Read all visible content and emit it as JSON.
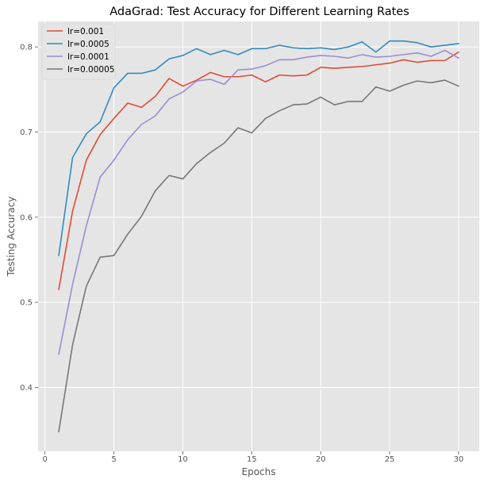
{
  "chart_data": {
    "type": "line",
    "title": "AdaGrad: Test Accuracy for Different Learning Rates",
    "xlabel": "Epochs",
    "ylabel": "Testing Accuracy",
    "xlim": [
      -0.5,
      31.5
    ],
    "ylim": [
      0.325,
      0.83
    ],
    "xticks": [
      0,
      5,
      10,
      15,
      20,
      25,
      30
    ],
    "yticks": [
      0.4,
      0.5,
      0.6,
      0.7,
      0.8
    ],
    "xtick_labels": [
      "0",
      "5",
      "10",
      "15",
      "20",
      "25",
      "30"
    ],
    "ytick_labels": [
      "0.4",
      "0.5",
      "0.6",
      "0.7",
      "0.8"
    ],
    "grid": true,
    "legend_position": "top-left",
    "background_color": "#e5e5e5",
    "grid_color": "#ffffff",
    "x": [
      1,
      2,
      3,
      4,
      5,
      6,
      7,
      8,
      9,
      10,
      11,
      12,
      13,
      14,
      15,
      16,
      17,
      18,
      19,
      20,
      21,
      22,
      23,
      24,
      25,
      26,
      27,
      28,
      29,
      30
    ],
    "series": [
      {
        "name": "lr=0.001",
        "color": "#E24A33",
        "values": [
          0.515,
          0.607,
          0.667,
          0.697,
          0.716,
          0.734,
          0.729,
          0.742,
          0.763,
          0.754,
          0.761,
          0.77,
          0.765,
          0.765,
          0.767,
          0.759,
          0.767,
          0.766,
          0.767,
          0.776,
          0.775,
          0.776,
          0.777,
          0.779,
          0.781,
          0.785,
          0.782,
          0.784,
          0.784,
          0.794
        ]
      },
      {
        "name": "lr=0.0005",
        "color": "#348ABD",
        "values": [
          0.555,
          0.67,
          0.698,
          0.712,
          0.752,
          0.769,
          0.769,
          0.773,
          0.786,
          0.79,
          0.798,
          0.791,
          0.796,
          0.791,
          0.798,
          0.798,
          0.802,
          0.799,
          0.798,
          0.799,
          0.797,
          0.8,
          0.806,
          0.794,
          0.807,
          0.807,
          0.805,
          0.8,
          0.802,
          0.804
        ]
      },
      {
        "name": "lr=0.0001",
        "color": "#988ED5",
        "values": [
          0.439,
          0.521,
          0.59,
          0.647,
          0.667,
          0.691,
          0.709,
          0.719,
          0.739,
          0.747,
          0.76,
          0.762,
          0.756,
          0.773,
          0.774,
          0.778,
          0.785,
          0.785,
          0.788,
          0.79,
          0.789,
          0.787,
          0.791,
          0.788,
          0.789,
          0.791,
          0.793,
          0.789,
          0.796,
          0.787
        ]
      },
      {
        "name": "lr=0.00005",
        "color": "#777777",
        "values": [
          0.348,
          0.45,
          0.519,
          0.553,
          0.555,
          0.58,
          0.601,
          0.631,
          0.649,
          0.645,
          0.663,
          0.676,
          0.687,
          0.705,
          0.699,
          0.716,
          0.725,
          0.732,
          0.733,
          0.741,
          0.732,
          0.736,
          0.736,
          0.753,
          0.748,
          0.755,
          0.76,
          0.758,
          0.761,
          0.754
        ]
      }
    ]
  }
}
